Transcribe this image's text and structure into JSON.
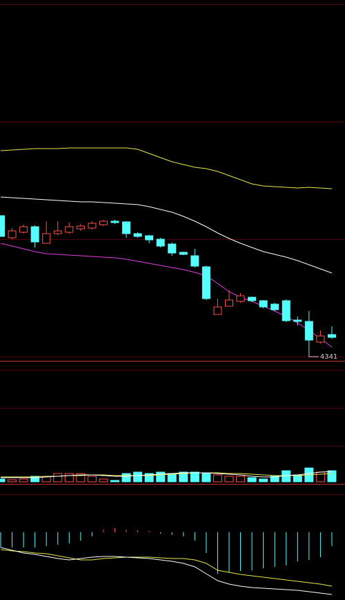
{
  "chart_data": [
    {
      "type": "candlestick",
      "up_color": "#ff5050",
      "down_color": "#54ffff",
      "open": [
        4543,
        4511,
        4519,
        4527,
        4503,
        4517,
        4519,
        4524,
        4525,
        4530,
        4535,
        4534,
        4517,
        4514,
        4509,
        4502,
        4490,
        4485,
        4469,
        4400,
        4412,
        4419,
        4425,
        4420,
        4415,
        4420,
        4392,
        4390,
        4360,
        4371
      ],
      "close": [
        4513,
        4521,
        4527,
        4505,
        4517,
        4521,
        4527,
        4528,
        4532,
        4535,
        4533,
        4517,
        4513,
        4508,
        4499,
        4489,
        4487,
        4470,
        4423,
        4411,
        4421,
        4427,
        4420,
        4411,
        4407,
        4391,
        4390,
        4363,
        4369,
        4367
      ],
      "high": [
        4543,
        4525,
        4530,
        4529,
        4535,
        4535,
        4533,
        4531,
        4535,
        4537,
        4537,
        4535,
        4519,
        4515,
        4511,
        4504,
        4491,
        4495,
        4471,
        4423,
        4435,
        4431,
        4426,
        4421,
        4417,
        4422,
        4397,
        4405,
        4377,
        4383
      ],
      "low": [
        4513,
        4509,
        4517,
        4497,
        4503,
        4515,
        4517,
        4521,
        4523,
        4528,
        4531,
        4511,
        4511,
        4503,
        4497,
        4485,
        4486,
        4468,
        4421,
        4400,
        4412,
        4417,
        4418,
        4409,
        4405,
        4389,
        4384,
        4341,
        4358,
        4365
      ],
      "series": [
        {
          "color": "#e8e84a",
          "values": [
            4637,
            4638,
            4639,
            4640,
            4640,
            4640,
            4641,
            4641,
            4641,
            4641,
            4641,
            4641,
            4639,
            4633,
            4627,
            4621,
            4617,
            4613,
            4611,
            4607,
            4601,
            4595,
            4589,
            4586,
            4585,
            4584,
            4583,
            4584,
            4583,
            4582
          ]
        },
        {
          "color": "#ffffff",
          "values": [
            4570,
            4569,
            4568,
            4567,
            4566,
            4565,
            4564,
            4563,
            4563,
            4562,
            4561,
            4560,
            4559,
            4556,
            4552,
            4548,
            4542,
            4535,
            4527,
            4518,
            4510,
            4503,
            4497,
            4491,
            4487,
            4483,
            4478,
            4472,
            4466,
            4460
          ]
        },
        {
          "color": "#e040e0",
          "values": [
            4503,
            4499,
            4495,
            4491,
            4488,
            4487,
            4486,
            4485,
            4484,
            4483,
            4482,
            4480,
            4477,
            4474,
            4471,
            4468,
            4465,
            4461,
            4456,
            4445,
            4433,
            4425,
            4419,
            4412,
            4405,
            4397,
            4388,
            4377,
            4365,
            4353
          ]
        }
      ],
      "ylim": [
        4333,
        4679
      ]
    },
    {
      "type": "volume",
      "values": [
        4,
        3,
        4,
        8,
        8,
        12,
        12,
        12,
        8,
        4,
        2,
        12,
        14,
        12,
        14,
        12,
        14,
        14,
        12,
        10,
        8,
        8,
        6,
        4,
        8,
        16,
        10,
        20,
        14,
        16
      ],
      "series": [
        {
          "color": "#e8e84a",
          "values": [
            7,
            7,
            7,
            7,
            8,
            8,
            9,
            9,
            10,
            10,
            9,
            9,
            9,
            9,
            10,
            11,
            12,
            13,
            13,
            13,
            12,
            12,
            11,
            10,
            9,
            9,
            9,
            10,
            11,
            12
          ]
        },
        {
          "color": "#ffffff",
          "values": [
            6,
            6,
            6,
            6,
            7,
            8,
            9,
            10,
            10,
            9,
            8,
            8,
            9,
            10,
            11,
            12,
            13,
            13,
            13,
            12,
            11,
            10,
            8,
            7,
            7,
            9,
            10,
            12,
            14,
            15
          ]
        }
      ],
      "ylim": [
        0,
        160
      ]
    },
    {
      "type": "macd",
      "values": [
        -22,
        -22,
        -22,
        -22,
        -20,
        -18,
        -16,
        -12,
        -6,
        4,
        6,
        4,
        3,
        2,
        -2,
        -4,
        -6,
        -12,
        -30,
        -60,
        -58,
        -56,
        -55,
        -52,
        -50,
        -48,
        -42,
        -40,
        -36,
        -20
      ],
      "series": [
        {
          "color": "#e8e84a",
          "values": [
            -25,
            -27,
            -28,
            -30,
            -31,
            -34,
            -37,
            -40,
            -40,
            -38,
            -37,
            -36,
            -36,
            -36,
            -37,
            -38,
            -38,
            -40,
            -45,
            -55,
            -58,
            -61,
            -63,
            -65,
            -67,
            -69,
            -71,
            -73,
            -75,
            -78
          ]
        },
        {
          "color": "#ffffff",
          "values": [
            -22,
            -26,
            -30,
            -32,
            -35,
            -38,
            -40,
            -38,
            -36,
            -35,
            -35,
            -36,
            -37,
            -38,
            -40,
            -42,
            -45,
            -50,
            -60,
            -70,
            -75,
            -78,
            -80,
            -81,
            -82,
            -83,
            -84,
            -86,
            -88,
            -90
          ]
        }
      ],
      "ylim": [
        -98,
        55
      ]
    }
  ]
}
